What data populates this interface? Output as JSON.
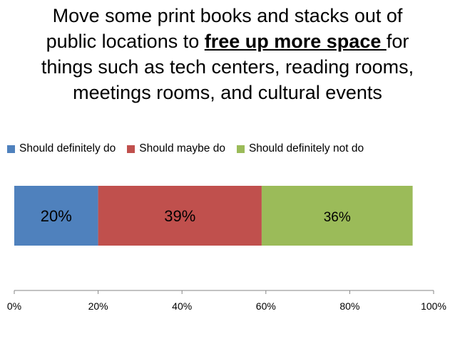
{
  "chart_data": {
    "type": "bar",
    "orientation": "horizontal",
    "stacked": true,
    "title_lines": [
      [
        {
          "text": "Move some print books and stacks out of"
        }
      ],
      [
        {
          "text": "public locations to "
        },
        {
          "text": "free up more space ",
          "emphasis": true
        },
        {
          "text": "for"
        }
      ],
      [
        {
          "text": "things such as tech centers, reading rooms,"
        }
      ],
      [
        {
          "text": "meetings rooms, and cultural events"
        }
      ]
    ],
    "categories": [
      ""
    ],
    "series": [
      {
        "name": "Should definitely do",
        "values": [
          20
        ],
        "label": "20%",
        "color": "#4f81bd"
      },
      {
        "name": "Should maybe do",
        "values": [
          39
        ],
        "label": "39%",
        "color": "#c0504d"
      },
      {
        "name": "Should definitely not do",
        "values": [
          36
        ],
        "label": "36%",
        "color": "#9bbb59"
      }
    ],
    "xlim": [
      0,
      100
    ],
    "x_ticks": [
      "0%",
      "20%",
      "40%",
      "60%",
      "80%",
      "100%"
    ],
    "legend_position": "top",
    "grid": false
  }
}
